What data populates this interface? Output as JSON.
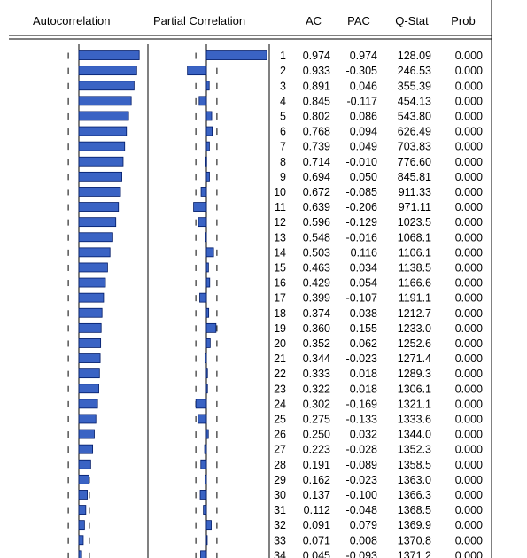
{
  "headers": {
    "autocorrelation": "Autocorrelation",
    "partial_correlation": "Partial Correlation",
    "ac": "AC",
    "pac": "PAC",
    "qstat": "Q-Stat",
    "prob": "Prob"
  },
  "colors": {
    "bar_fill": "#3a63c4",
    "bar_stroke": "#001a66",
    "line": "#000000",
    "background": "#ffffff"
  },
  "chart_data": {
    "type": "bar",
    "layout": "correlogram",
    "grid": false,
    "columns": [
      "Autocorrelation",
      "Partial Correlation",
      "AC",
      "PAC",
      "Q-Stat",
      "Prob"
    ],
    "rows": [
      {
        "lag": "1",
        "ac": "0.974",
        "pac": "0.974",
        "q": "128.09",
        "prob": "0.000"
      },
      {
        "lag": "2",
        "ac": "0.933",
        "pac": "-0.305",
        "q": "246.53",
        "prob": "0.000"
      },
      {
        "lag": "3",
        "ac": "0.891",
        "pac": "0.046",
        "q": "355.39",
        "prob": "0.000"
      },
      {
        "lag": "4",
        "ac": "0.845",
        "pac": "-0.117",
        "q": "454.13",
        "prob": "0.000"
      },
      {
        "lag": "5",
        "ac": "0.802",
        "pac": "0.086",
        "q": "543.80",
        "prob": "0.000"
      },
      {
        "lag": "6",
        "ac": "0.768",
        "pac": "0.094",
        "q": "626.49",
        "prob": "0.000"
      },
      {
        "lag": "7",
        "ac": "0.739",
        "pac": "0.049",
        "q": "703.83",
        "prob": "0.000"
      },
      {
        "lag": "8",
        "ac": "0.714",
        "pac": "-0.010",
        "q": "776.60",
        "prob": "0.000"
      },
      {
        "lag": "9",
        "ac": "0.694",
        "pac": "0.050",
        "q": "845.81",
        "prob": "0.000"
      },
      {
        "lag": "10",
        "ac": "0.672",
        "pac": "-0.085",
        "q": "911.33",
        "prob": "0.000"
      },
      {
        "lag": "11",
        "ac": "0.639",
        "pac": "-0.206",
        "q": "971.11",
        "prob": "0.000"
      },
      {
        "lag": "12",
        "ac": "0.596",
        "pac": "-0.129",
        "q": "1023.5",
        "prob": "0.000"
      },
      {
        "lag": "13",
        "ac": "0.548",
        "pac": "-0.016",
        "q": "1068.1",
        "prob": "0.000"
      },
      {
        "lag": "14",
        "ac": "0.503",
        "pac": "0.116",
        "q": "1106.1",
        "prob": "0.000"
      },
      {
        "lag": "15",
        "ac": "0.463",
        "pac": "0.034",
        "q": "1138.5",
        "prob": "0.000"
      },
      {
        "lag": "16",
        "ac": "0.429",
        "pac": "0.054",
        "q": "1166.6",
        "prob": "0.000"
      },
      {
        "lag": "17",
        "ac": "0.399",
        "pac": "-0.107",
        "q": "1191.1",
        "prob": "0.000"
      },
      {
        "lag": "18",
        "ac": "0.374",
        "pac": "0.038",
        "q": "1212.7",
        "prob": "0.000"
      },
      {
        "lag": "19",
        "ac": "0.360",
        "pac": "0.155",
        "q": "1233.0",
        "prob": "0.000"
      },
      {
        "lag": "20",
        "ac": "0.352",
        "pac": "0.062",
        "q": "1252.6",
        "prob": "0.000"
      },
      {
        "lag": "21",
        "ac": "0.344",
        "pac": "-0.023",
        "q": "1271.4",
        "prob": "0.000"
      },
      {
        "lag": "22",
        "ac": "0.333",
        "pac": "0.018",
        "q": "1289.3",
        "prob": "0.000"
      },
      {
        "lag": "23",
        "ac": "0.322",
        "pac": "0.018",
        "q": "1306.1",
        "prob": "0.000"
      },
      {
        "lag": "24",
        "ac": "0.302",
        "pac": "-0.169",
        "q": "1321.1",
        "prob": "0.000"
      },
      {
        "lag": "25",
        "ac": "0.275",
        "pac": "-0.133",
        "q": "1333.6",
        "prob": "0.000"
      },
      {
        "lag": "26",
        "ac": "0.250",
        "pac": "0.032",
        "q": "1344.0",
        "prob": "0.000"
      },
      {
        "lag": "27",
        "ac": "0.223",
        "pac": "-0.028",
        "q": "1352.3",
        "prob": "0.000"
      },
      {
        "lag": "28",
        "ac": "0.191",
        "pac": "-0.089",
        "q": "1358.5",
        "prob": "0.000"
      },
      {
        "lag": "29",
        "ac": "0.162",
        "pac": "-0.023",
        "q": "1363.0",
        "prob": "0.000"
      },
      {
        "lag": "30",
        "ac": "0.137",
        "pac": "-0.100",
        "q": "1366.3",
        "prob": "0.000"
      },
      {
        "lag": "31",
        "ac": "0.112",
        "pac": "-0.048",
        "q": "1368.5",
        "prob": "0.000"
      },
      {
        "lag": "32",
        "ac": "0.091",
        "pac": "0.079",
        "q": "1369.9",
        "prob": "0.000"
      },
      {
        "lag": "33",
        "ac": "0.071",
        "pac": "0.008",
        "q": "1370.8",
        "prob": "0.000"
      },
      {
        "lag": "34",
        "ac": "0.045",
        "pac": "-0.093",
        "q": "1371.2",
        "prob": "0.000"
      }
    ]
  }
}
